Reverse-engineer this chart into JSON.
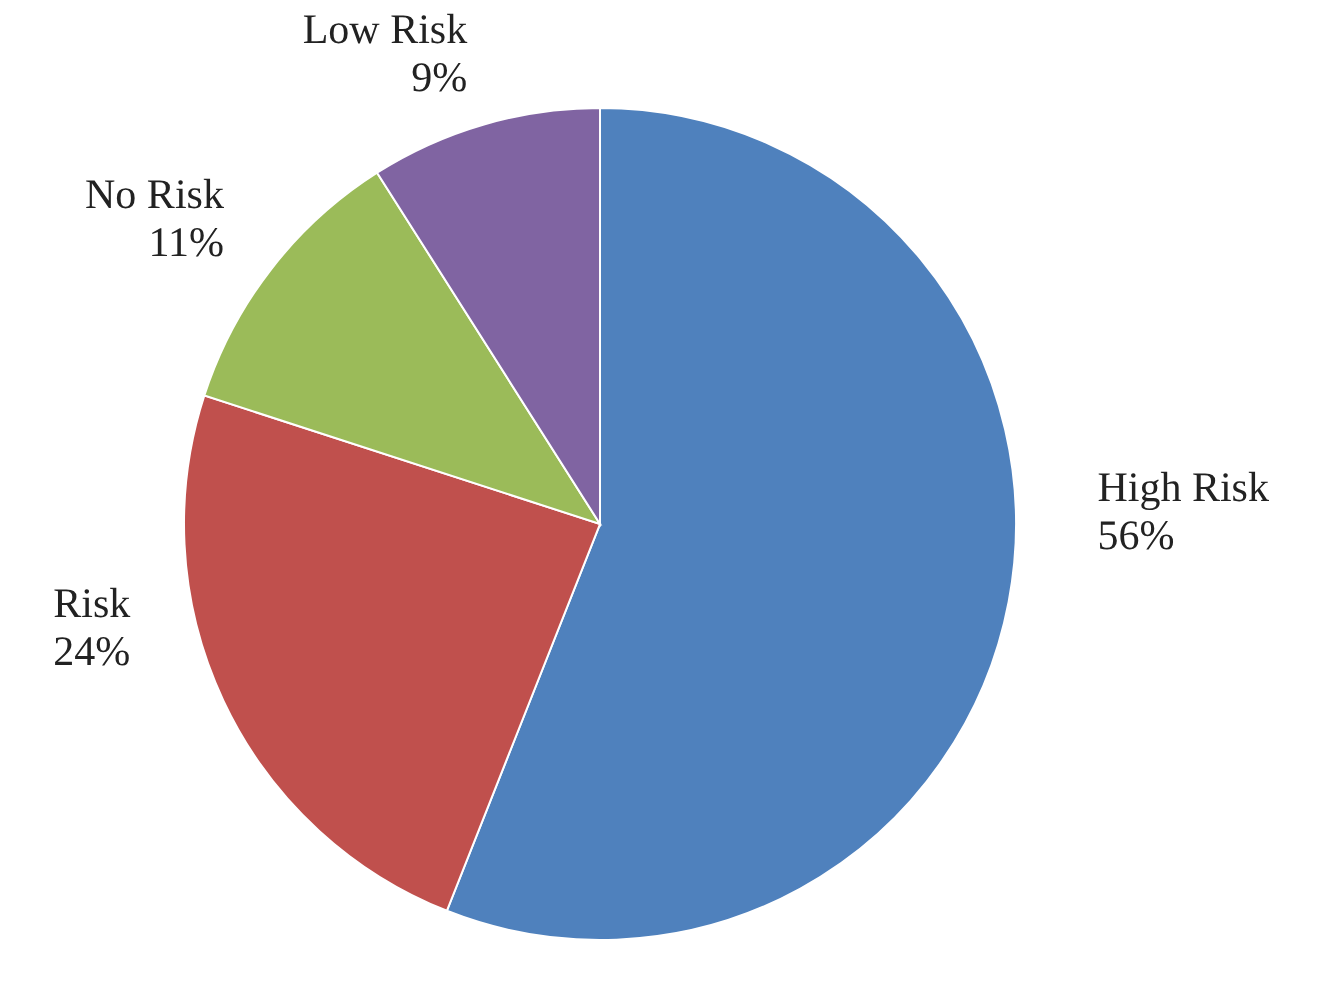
{
  "chart_data": {
    "type": "pie",
    "categories": [
      "High Risk",
      "Risk",
      "No Risk",
      "Low Risk"
    ],
    "values": [
      56,
      24,
      11,
      9
    ],
    "colors": [
      "#4f81bd",
      "#c0504d",
      "#9bbb59",
      "#8064a2"
    ],
    "value_labels": [
      "56%",
      "24%",
      "11%",
      "9%"
    ]
  }
}
